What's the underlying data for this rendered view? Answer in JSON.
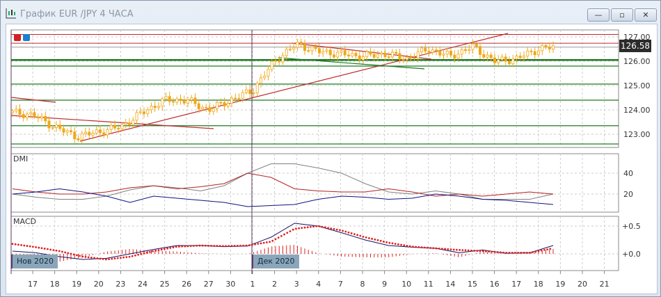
{
  "window": {
    "title": "График EUR /JPY  4 ЧАСА",
    "buttons": {
      "minimize": "—",
      "restore": "▫",
      "close": "✕"
    }
  },
  "colors": {
    "candle": "#f0a818",
    "support": "#1e7a1e",
    "trend": "#c0282c",
    "adx": "#808080",
    "plus_di": "#b02020",
    "minus_di": "#101080",
    "macd": "#101060",
    "signal": "#e02020"
  },
  "current_price": "126.58",
  "date_tags": [
    "Нов 2020",
    "Дек 2020"
  ],
  "chart_data": [
    {
      "type": "candlestick",
      "title": "",
      "yticks": [
        "127.00",
        "126.00",
        "125.00",
        "124.00",
        "123.00"
      ],
      "ylim": [
        122.4,
        127.3
      ],
      "xticks": [
        "17",
        "18",
        "19",
        "20",
        "23",
        "24",
        "25",
        "26",
        "27",
        "30",
        "1",
        "2",
        "3",
        "4",
        "7",
        "8",
        "9",
        "10",
        "11",
        "14",
        "15",
        "16",
        "17",
        "18",
        "19",
        "20",
        "21"
      ],
      "approx_daily_path": [
        {
          "date": "Nov 16",
          "price": 123.9
        },
        {
          "date": "Nov 17",
          "price": 123.8
        },
        {
          "date": "Nov 18",
          "price": 123.3
        },
        {
          "date": "Nov 19",
          "price": 122.9
        },
        {
          "date": "Nov 20",
          "price": 123.1
        },
        {
          "date": "Nov 23",
          "price": 123.3
        },
        {
          "date": "Nov 24",
          "price": 123.9
        },
        {
          "date": "Nov 25",
          "price": 124.4
        },
        {
          "date": "Nov 26",
          "price": 124.4
        },
        {
          "date": "Nov 27",
          "price": 124.0
        },
        {
          "date": "Nov 30",
          "price": 124.4
        },
        {
          "date": "Dec 1",
          "price": 124.8
        },
        {
          "date": "Dec 2",
          "price": 126.0
        },
        {
          "date": "Dec 3",
          "price": 126.7
        },
        {
          "date": "Dec 4",
          "price": 126.4
        },
        {
          "date": "Dec 7",
          "price": 126.3
        },
        {
          "date": "Dec 8",
          "price": 126.2
        },
        {
          "date": "Dec 9",
          "price": 126.3
        },
        {
          "date": "Dec 10",
          "price": 126.1
        },
        {
          "date": "Dec 11",
          "price": 126.5
        },
        {
          "date": "Dec 14",
          "price": 126.2
        },
        {
          "date": "Dec 15",
          "price": 126.6
        },
        {
          "date": "Dec 16",
          "price": 126.0
        },
        {
          "date": "Dec 17",
          "price": 126.1
        },
        {
          "date": "Dec 18",
          "price": 126.5
        },
        {
          "date": "Dec 18 late",
          "price": 126.58
        }
      ],
      "support_levels": [
        126.05,
        125.8,
        125.06,
        124.4,
        123.35,
        122.6
      ],
      "resistance_levels": [
        127.1,
        126.74
      ]
    },
    {
      "type": "line",
      "title": "DMI",
      "yticks": [
        "40",
        "20"
      ],
      "series": [
        {
          "key": "adx",
          "values": [
            20,
            17,
            15,
            15,
            18,
            24,
            28,
            26,
            23,
            28,
            40,
            49,
            49,
            45,
            40,
            30,
            22,
            20,
            23,
            20,
            15,
            15,
            15,
            20
          ]
        },
        {
          "key": "plus_di",
          "values": [
            25,
            22,
            20,
            20,
            22,
            26,
            28,
            25,
            27,
            30,
            40,
            36,
            25,
            23,
            22,
            22,
            25,
            22,
            18,
            20,
            18,
            20,
            22,
            20
          ]
        },
        {
          "key": "minus_di",
          "values": [
            20,
            22,
            25,
            22,
            18,
            12,
            18,
            16,
            14,
            12,
            8,
            9,
            10,
            15,
            18,
            17,
            15,
            16,
            20,
            18,
            15,
            14,
            12,
            10
          ]
        }
      ]
    },
    {
      "type": "line",
      "title": "MACD",
      "yticks": [
        "+0.5",
        "+0.0"
      ],
      "series": [
        {
          "key": "macd",
          "values": [
            0.05,
            0.02,
            -0.05,
            -0.1,
            -0.08,
            0.0,
            0.08,
            0.15,
            0.15,
            0.13,
            0.14,
            0.3,
            0.55,
            0.5,
            0.38,
            0.25,
            0.15,
            0.12,
            0.1,
            0.02,
            0.07,
            0.01,
            0.02,
            0.15
          ]
        },
        {
          "key": "signal",
          "values": [
            0.18,
            0.12,
            0.05,
            -0.05,
            -0.1,
            -0.05,
            0.05,
            0.13,
            0.15,
            0.14,
            0.15,
            0.22,
            0.45,
            0.5,
            0.42,
            0.3,
            0.2,
            0.13,
            0.1,
            0.07,
            0.05,
            0.02,
            0.02,
            0.1
          ]
        }
      ]
    }
  ]
}
